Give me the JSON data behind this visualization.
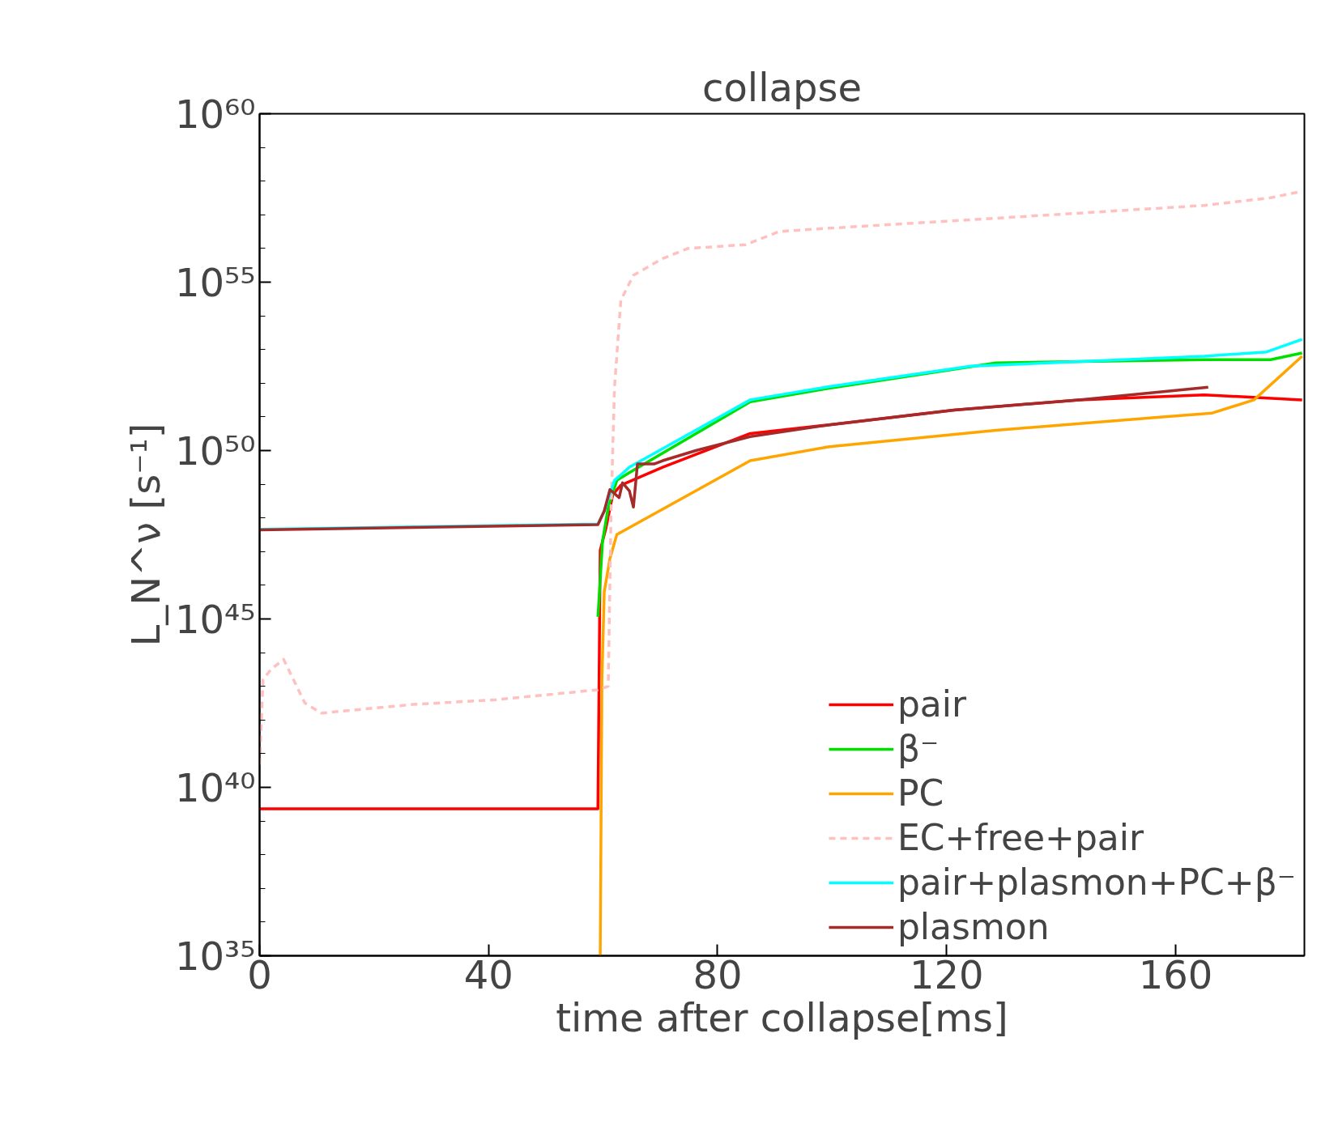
{
  "chart_data": {
    "type": "line",
    "title": "collapse",
    "xlabel": "time after collapse[ms]",
    "ylabel": "L_N^ν [s⁻¹]",
    "log": "y",
    "grid": false,
    "legend": "bottom right",
    "line_style": "solid",
    "marker": "none",
    "xlim": [
      0,
      182.5
    ],
    "xticks": [
      0,
      40,
      80,
      120,
      160
    ],
    "ylim": [
      1e+35,
      1e+60
    ],
    "yticks": [
      {
        "value": 1e+35,
        "label": "10³⁵"
      },
      {
        "value": 1e+40,
        "label": "10⁴⁰"
      },
      {
        "value": 1e+45,
        "label": "10⁴⁵"
      },
      {
        "value": 1e+50,
        "label": "10⁵⁰"
      },
      {
        "value": 1e+55,
        "label": "10⁵⁵"
      },
      {
        "value": 1e+60,
        "label": "10⁶⁰"
      }
    ],
    "series": [
      {
        "name": "pair",
        "color": "#ff0000",
        "x": [
          0,
          59.1,
          59.5,
          60.5,
          61.7,
          63.1,
          70.4,
          85.7,
          99.5,
          121.3,
          143.1,
          165.0,
          182.1
        ],
        "values": [
          2.3e+39,
          2.3e+39,
          1.1e+47,
          5e+47,
          5e+48,
          9.3e+48,
          3.2e+49,
          3.2e+50,
          5.8e+50,
          1.6e+51,
          3.2e+51,
          4.5e+51,
          3.2e+51
        ]
      },
      {
        "name": "β⁻",
        "color": "#00e000",
        "x": [
          59.1,
          59.9,
          60.9,
          62.4,
          64.6,
          85.7,
          99.5,
          128.6,
          165.0,
          176.6,
          182.1
        ],
        "values": [
          1.15e+45,
          2e+47,
          2.1e+48,
          1.3e+49,
          2.2e+49,
          2.8e+51,
          7.1e+51,
          4e+52,
          5e+52,
          5e+52,
          7.9e+52
        ]
      },
      {
        "name": "PC",
        "color": "#ffa500",
        "x": [
          59.5,
          59.8,
          60.2,
          61.2,
          62.4,
          85.7,
          99.5,
          128.6,
          157.7,
          166.4,
          173.7,
          182.1
        ],
        "values": [
          1e+35,
          1.6e+43,
          6.3e+45,
          6.3e+46,
          3.2e+47,
          5e+49,
          1.3e+50,
          4e+50,
          1e+51,
          1.3e+51,
          3.2e+51,
          6.3e+52
        ]
      },
      {
        "name": "EC+free+pair",
        "color": "#ffc0c0",
        "line_style": "dashed",
        "x": [
          0,
          0.6,
          2.0,
          4.2,
          7.9,
          10.8,
          26.8,
          41.3,
          59.1,
          60.9,
          61.4,
          62.0,
          63.1,
          65.3,
          70.4,
          74.8,
          84.9,
          90.8,
          99.5,
          128.6,
          165.0,
          176.6,
          182.1
        ],
        "values": [
          4.7e+40,
          1.6e+43,
          3.2e+43,
          6.3e+43,
          3.2e+42,
          1.6e+42,
          2.9e+42,
          4e+42,
          7.9e+42,
          1e+43,
          2e+48,
          7.9e+51,
          2.9e+54,
          1.6e+55,
          5e+55,
          1e+56,
          1.3e+56,
          3.2e+56,
          4e+56,
          7.9e+56,
          1.9e+57,
          3.2e+57,
          5e+57
        ]
      },
      {
        "name": "pair+plasmon+PC+β⁻",
        "color": "#00ffff",
        "x": [
          0,
          59.1,
          60.2,
          62.0,
          64.6,
          85.7,
          99.5,
          124.2,
          165.0,
          175.9,
          182.1
        ],
        "values": [
          4.6e+47,
          6.6e+47,
          1.6e+48,
          1.3e+49,
          3.2e+49,
          3.2e+51,
          7.9e+51,
          3.2e+52,
          6.3e+52,
          8.5e+52,
          2e+53
        ]
      },
      {
        "name": "plasmon",
        "color": "#a52a2a",
        "x": [
          0,
          59.1,
          60.2,
          61.2,
          62.8,
          63.4,
          64.6,
          65.3,
          66.0,
          68.9,
          70.4,
          76.2,
          85.7,
          99.5,
          121.3,
          143.1,
          165.7
        ],
        "values": [
          4.4e+47,
          6.3e+47,
          1.6e+48,
          6.9e+48,
          4e+48,
          1.1e+49,
          6.3e+48,
          2.1e+48,
          4e+49,
          4e+49,
          5e+49,
          1e+50,
          2.6e+50,
          5.8e+50,
          1.6e+51,
          3.2e+51,
          7.6e+51
        ]
      }
    ]
  }
}
